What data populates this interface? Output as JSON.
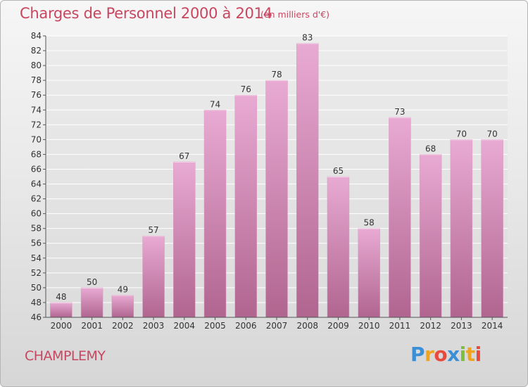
{
  "header": {
    "title": "Charges de Personnel 2000 à 2014",
    "unit_note": "(en milliers d'€)"
  },
  "footer": {
    "commune": "CHAMPLEMY",
    "logo_letters": [
      "P",
      "r",
      "o",
      "x",
      "i",
      "t",
      "i"
    ],
    "logo_colors": [
      "#3a8fd6",
      "#f0a31c",
      "#e84b3c",
      "#3a8fd6",
      "#7bbf3a",
      "#f0a31c",
      "#e84b3c"
    ]
  },
  "colors": {
    "bar_top": "#e8aad3",
    "bar_bottom": "#b0658f",
    "text_accent": "#c8465f",
    "grid": "#ffffff"
  },
  "chart_data": {
    "type": "bar",
    "title": "Charges de Personnel 2000 à 2014",
    "subtitle": "(en milliers d'€)",
    "categories": [
      "2000",
      "2001",
      "2002",
      "2003",
      "2004",
      "2005",
      "2006",
      "2007",
      "2008",
      "2009",
      "2010",
      "2011",
      "2012",
      "2013",
      "2014"
    ],
    "values": [
      48,
      50,
      49,
      57,
      67,
      74,
      76,
      78,
      83,
      65,
      58,
      73,
      68,
      70,
      70
    ],
    "ylim": [
      46,
      84
    ],
    "yticks": [
      46,
      48,
      50,
      52,
      54,
      56,
      58,
      60,
      62,
      64,
      66,
      68,
      70,
      72,
      74,
      76,
      78,
      80,
      82,
      84
    ],
    "grid": true,
    "xlabel": "",
    "ylabel": ""
  }
}
